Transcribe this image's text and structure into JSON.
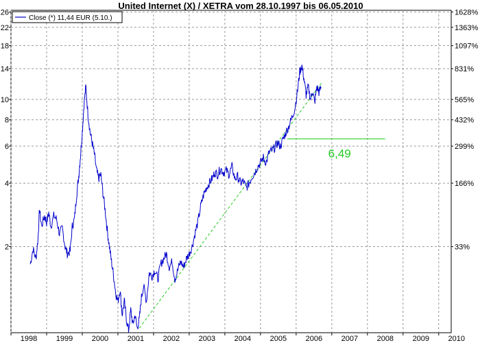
{
  "chart_data": {
    "type": "line",
    "title": "United Internet (X) / XETRA vom 28.10.1997  bis 06.05.2010",
    "x_axis": {
      "range": [
        1998.0,
        2010.35
      ],
      "tick_labels": [
        "1998",
        "1999",
        "2000",
        "2001",
        "2002",
        "2003",
        "2004",
        "2005",
        "2006",
        "2007",
        "2008",
        "2009",
        "2010"
      ]
    },
    "y_axis_left": {
      "scale": "log",
      "range": [
        0.78,
        26.5
      ],
      "ticks": [
        2,
        4,
        6,
        8,
        10,
        14,
        18,
        22,
        26
      ],
      "tick_labels": [
        "2",
        "4",
        "6",
        "8",
        "10",
        "14",
        "18",
        "22",
        "26"
      ]
    },
    "y_axis_right": {
      "ticks": [
        {
          "label": "33%",
          "y": 2.0
        },
        {
          "label": "166%",
          "y": 4.0
        },
        {
          "label": "299%",
          "y": 6.0
        },
        {
          "label": "432%",
          "y": 8.0
        },
        {
          "label": "565%",
          "y": 10.0
        },
        {
          "label": "831%",
          "y": 14.0
        },
        {
          "label": "1097%",
          "y": 18.0
        },
        {
          "label": "1363%",
          "y": 22.0
        },
        {
          "label": "1628%",
          "y": 26.0
        }
      ]
    },
    "grid": true,
    "legend": {
      "position": "top-left",
      "entries": [
        "Close (*) 11,44 EUR (5.10.)"
      ]
    },
    "series": [
      {
        "name": "Close (*) 11,44 EUR (5.10.)",
        "color": "#0000cc",
        "points": [
          [
            1998.54,
            1.65
          ],
          [
            1998.62,
            1.95
          ],
          [
            1998.7,
            1.75
          ],
          [
            1998.76,
            2.2
          ],
          [
            1998.8,
            3.0
          ],
          [
            1998.86,
            2.5
          ],
          [
            1998.94,
            2.8
          ],
          [
            1999.0,
            2.6
          ],
          [
            1999.06,
            2.9
          ],
          [
            1999.12,
            2.5
          ],
          [
            1999.2,
            2.8
          ],
          [
            1999.28,
            2.7
          ],
          [
            1999.36,
            2.3
          ],
          [
            1999.44,
            2.45
          ],
          [
            1999.52,
            2.0
          ],
          [
            1999.58,
            1.85
          ],
          [
            1999.66,
            1.9
          ],
          [
            1999.72,
            2.5
          ],
          [
            1999.78,
            2.7
          ],
          [
            1999.84,
            3.5
          ],
          [
            1999.9,
            4.3
          ],
          [
            1999.95,
            5.4
          ],
          [
            2000.0,
            7.0
          ],
          [
            2000.05,
            9.5
          ],
          [
            2000.1,
            11.5
          ],
          [
            2000.16,
            8.5
          ],
          [
            2000.22,
            7.0
          ],
          [
            2000.28,
            6.2
          ],
          [
            2000.34,
            5.5
          ],
          [
            2000.4,
            4.6
          ],
          [
            2000.46,
            4.2
          ],
          [
            2000.52,
            4.4
          ],
          [
            2000.58,
            3.6
          ],
          [
            2000.64,
            3.0
          ],
          [
            2000.7,
            2.4
          ],
          [
            2000.76,
            2.0
          ],
          [
            2000.82,
            1.7
          ],
          [
            2000.88,
            1.45
          ],
          [
            2000.94,
            1.2
          ],
          [
            2001.0,
            1.1
          ],
          [
            2001.06,
            1.25
          ],
          [
            2001.12,
            0.95
          ],
          [
            2001.18,
            1.1
          ],
          [
            2001.24,
            0.9
          ],
          [
            2001.3,
            0.8
          ],
          [
            2001.36,
            1.0
          ],
          [
            2001.42,
            0.85
          ],
          [
            2001.48,
            0.95
          ],
          [
            2001.54,
            0.82
          ],
          [
            2001.6,
            0.9
          ],
          [
            2001.66,
            1.15
          ],
          [
            2001.72,
            1.3
          ],
          [
            2001.8,
            1.1
          ],
          [
            2001.88,
            1.5
          ],
          [
            2001.96,
            1.45
          ],
          [
            2002.04,
            1.55
          ],
          [
            2002.12,
            1.4
          ],
          [
            2002.2,
            1.65
          ],
          [
            2002.28,
            1.75
          ],
          [
            2002.36,
            1.85
          ],
          [
            2002.44,
            1.6
          ],
          [
            2002.52,
            1.7
          ],
          [
            2002.6,
            1.4
          ],
          [
            2002.68,
            1.55
          ],
          [
            2002.76,
            1.7
          ],
          [
            2002.84,
            1.6
          ],
          [
            2002.92,
            1.75
          ],
          [
            2003.0,
            1.85
          ],
          [
            2003.08,
            2.0
          ],
          [
            2003.16,
            2.3
          ],
          [
            2003.24,
            2.6
          ],
          [
            2003.32,
            3.1
          ],
          [
            2003.4,
            3.5
          ],
          [
            2003.48,
            3.8
          ],
          [
            2003.56,
            4.0
          ],
          [
            2003.64,
            4.2
          ],
          [
            2003.72,
            4.5
          ],
          [
            2003.8,
            4.4
          ],
          [
            2003.88,
            4.7
          ],
          [
            2003.96,
            4.5
          ],
          [
            2004.04,
            4.6
          ],
          [
            2004.12,
            4.4
          ],
          [
            2004.2,
            4.8
          ],
          [
            2004.28,
            4.2
          ],
          [
            2004.36,
            4.3
          ],
          [
            2004.44,
            4.0
          ],
          [
            2004.52,
            4.1
          ],
          [
            2004.6,
            3.8
          ],
          [
            2004.68,
            4.0
          ],
          [
            2004.76,
            4.3
          ],
          [
            2004.84,
            4.5
          ],
          [
            2004.92,
            4.8
          ],
          [
            2005.0,
            5.0
          ],
          [
            2005.08,
            5.3
          ],
          [
            2005.16,
            5.0
          ],
          [
            2005.24,
            5.6
          ],
          [
            2005.32,
            5.7
          ],
          [
            2005.4,
            5.9
          ],
          [
            2005.48,
            6.2
          ],
          [
            2005.56,
            6.0
          ],
          [
            2005.64,
            6.5
          ],
          [
            2005.72,
            7.0
          ],
          [
            2005.8,
            7.5
          ],
          [
            2005.88,
            8.2
          ],
          [
            2005.96,
            9.0
          ],
          [
            2006.04,
            11.0
          ],
          [
            2006.1,
            13.5
          ],
          [
            2006.16,
            14.5
          ],
          [
            2006.22,
            12.5
          ],
          [
            2006.28,
            10.5
          ],
          [
            2006.34,
            11.5
          ],
          [
            2006.4,
            10.0
          ],
          [
            2006.46,
            11.0
          ],
          [
            2006.52,
            9.6
          ],
          [
            2006.58,
            11.5
          ],
          [
            2006.64,
            10.8
          ],
          [
            2006.7,
            11.44
          ]
        ]
      }
    ],
    "support_line": {
      "from": [
        2001.6,
        0.82
      ],
      "to": [
        2006.72,
        12.0
      ],
      "color": "#22cc22"
    },
    "horizontal_line": {
      "from": [
        2005.75,
        6.49
      ],
      "to": [
        2008.5,
        6.49
      ],
      "color": "#22cc22"
    },
    "annotation": {
      "text": "6,49",
      "x": 2006.9,
      "y": 5.3,
      "color": "#22cc22"
    }
  }
}
